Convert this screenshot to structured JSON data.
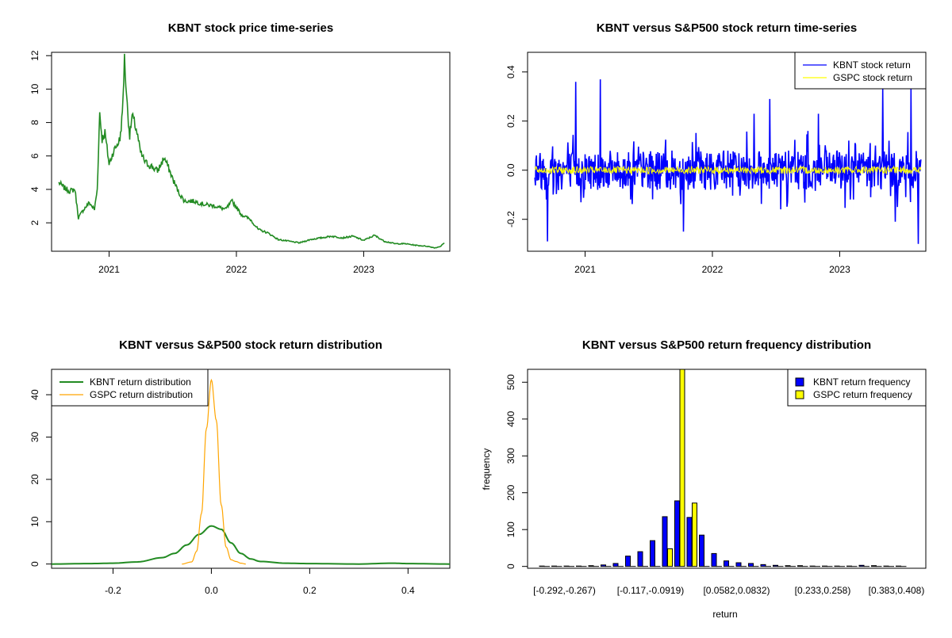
{
  "chart_data": [
    {
      "type": "line",
      "title": "KBNT stock price time-series",
      "xlabel": "",
      "ylabel": "",
      "xlim": [
        "2020-07-20",
        "2023-09-05"
      ],
      "ylim": [
        0.3,
        12.2
      ],
      "x_ticks": [
        "2021",
        "2022",
        "2023"
      ],
      "y_ticks": [
        "2",
        "4",
        "6",
        "8",
        "10",
        "12"
      ],
      "color": "#228B22",
      "series": [
        {
          "name": "",
          "points": [
            [
              "2020-08-10",
              4.4
            ],
            [
              "2020-08-25",
              4.1
            ],
            [
              "2020-09-10",
              3.9
            ],
            [
              "2020-09-25",
              4.0
            ],
            [
              "2020-10-05",
              2.3
            ],
            [
              "2020-10-20",
              2.8
            ],
            [
              "2020-11-05",
              3.2
            ],
            [
              "2020-11-20",
              2.8
            ],
            [
              "2020-11-28",
              4.0
            ],
            [
              "2020-12-05",
              8.6
            ],
            [
              "2020-12-12",
              7.0
            ],
            [
              "2020-12-20",
              7.4
            ],
            [
              "2021-01-01",
              5.5
            ],
            [
              "2021-01-12",
              6.2
            ],
            [
              "2021-01-22",
              6.6
            ],
            [
              "2021-02-01",
              7.0
            ],
            [
              "2021-02-08",
              8.5
            ],
            [
              "2021-02-14",
              11.8
            ],
            [
              "2021-02-22",
              9.0
            ],
            [
              "2021-03-01",
              7.2
            ],
            [
              "2021-03-08",
              8.4
            ],
            [
              "2021-03-20",
              7.6
            ],
            [
              "2021-04-01",
              6.2
            ],
            [
              "2021-04-15",
              5.6
            ],
            [
              "2021-05-01",
              5.4
            ],
            [
              "2021-05-20",
              5.1
            ],
            [
              "2021-06-08",
              5.9
            ],
            [
              "2021-06-20",
              5.3
            ],
            [
              "2021-07-05",
              4.5
            ],
            [
              "2021-07-20",
              3.8
            ],
            [
              "2021-08-05",
              3.3
            ],
            [
              "2021-09-01",
              3.3
            ],
            [
              "2021-10-01",
              3.1
            ],
            [
              "2021-11-01",
              3.0
            ],
            [
              "2021-12-01",
              2.8
            ],
            [
              "2021-12-20",
              3.3
            ],
            [
              "2022-01-15",
              2.5
            ],
            [
              "2022-02-10",
              2.2
            ],
            [
              "2022-03-05",
              1.6
            ],
            [
              "2022-04-01",
              1.4
            ],
            [
              "2022-05-01",
              1.0
            ],
            [
              "2022-06-01",
              0.9
            ],
            [
              "2022-07-01",
              0.8
            ],
            [
              "2022-08-01",
              1.0
            ],
            [
              "2022-09-01",
              1.1
            ],
            [
              "2022-10-01",
              1.2
            ],
            [
              "2022-11-01",
              1.1
            ],
            [
              "2022-12-01",
              1.2
            ],
            [
              "2023-01-01",
              0.95
            ],
            [
              "2023-02-01",
              1.25
            ],
            [
              "2023-03-01",
              0.9
            ],
            [
              "2023-04-01",
              0.75
            ],
            [
              "2023-05-01",
              0.75
            ],
            [
              "2023-06-01",
              0.65
            ],
            [
              "2023-07-01",
              0.6
            ],
            [
              "2023-07-25",
              0.5
            ],
            [
              "2023-08-10",
              0.6
            ],
            [
              "2023-08-20",
              0.8
            ]
          ]
        }
      ]
    },
    {
      "type": "line",
      "title": "KBNT versus S&P500 stock return time-series",
      "xlabel": "",
      "ylabel": "",
      "xlim": [
        "2020-07-20",
        "2023-09-05"
      ],
      "ylim": [
        -0.33,
        0.48
      ],
      "x_ticks": [
        "2021",
        "2022",
        "2023"
      ],
      "y_ticks": [
        "-0.2",
        "0.0",
        "0.2",
        "0.4"
      ],
      "legend": {
        "position": "top-right",
        "items": [
          {
            "label": "KBNT stock return",
            "color": "#0000FF"
          },
          {
            "label": "GSPC stock return",
            "color": "#FFFF00"
          }
        ]
      },
      "series": [
        {
          "name": "KBNT stock return",
          "color": "#0000FF",
          "spikes": [
            [
              "2020-09-15",
              -0.29
            ],
            [
              "2020-09-25",
              -0.15
            ],
            [
              "2020-12-05",
              0.36
            ],
            [
              "2021-02-14",
              0.37
            ],
            [
              "2021-03-15",
              -0.15
            ],
            [
              "2021-06-01",
              -0.24
            ],
            [
              "2021-10-10",
              -0.25
            ],
            [
              "2022-05-01",
              0.23
            ],
            [
              "2022-06-15",
              0.29
            ],
            [
              "2022-11-01",
              0.23
            ],
            [
              "2023-05-05",
              0.33
            ],
            [
              "2023-06-10",
              -0.21
            ],
            [
              "2023-07-25",
              0.33
            ],
            [
              "2023-08-15",
              -0.3
            ],
            [
              "2023-08-20",
              0.1
            ]
          ],
          "noise_amplitude": 0.08
        },
        {
          "name": "GSPC stock return",
          "color": "#FFFF00",
          "noise_amplitude": 0.015
        }
      ]
    },
    {
      "type": "line",
      "title": "KBNT versus S&P500 stock return distribution",
      "xlabel": "",
      "ylabel": "",
      "xlim": [
        -0.325,
        0.485
      ],
      "ylim": [
        -1.0,
        46.0
      ],
      "x_ticks": [
        "-0.2",
        "0.0",
        "0.2",
        "0.4"
      ],
      "y_ticks": [
        "0",
        "10",
        "20",
        "30",
        "40"
      ],
      "legend": {
        "position": "top-left",
        "items": [
          {
            "label": "KBNT return distribution",
            "color": "#228B22"
          },
          {
            "label": "GSPC return distribution",
            "color": "#FFA500"
          }
        ]
      },
      "series": [
        {
          "name": "KBNT return distribution",
          "color": "#228B22",
          "points": [
            [
              -0.325,
              0
            ],
            [
              -0.25,
              0.1
            ],
            [
              -0.2,
              0.2
            ],
            [
              -0.15,
              0.5
            ],
            [
              -0.1,
              1.5
            ],
            [
              -0.075,
              2.5
            ],
            [
              -0.05,
              4.5
            ],
            [
              -0.025,
              7.0
            ],
            [
              0.0,
              9.0
            ],
            [
              0.02,
              8.2
            ],
            [
              0.04,
              5.0
            ],
            [
              0.06,
              2.5
            ],
            [
              0.08,
              1.2
            ],
            [
              0.1,
              0.6
            ],
            [
              0.15,
              0.2
            ],
            [
              0.2,
              0.1
            ],
            [
              0.3,
              0
            ],
            [
              0.37,
              0.2
            ],
            [
              0.4,
              0.1
            ],
            [
              0.485,
              0
            ]
          ]
        },
        {
          "name": "GSPC return distribution",
          "color": "#FFA500",
          "points": [
            [
              -0.06,
              0
            ],
            [
              -0.04,
              0.5
            ],
            [
              -0.03,
              3
            ],
            [
              -0.02,
              12
            ],
            [
              -0.01,
              32
            ],
            [
              0.0,
              43.5
            ],
            [
              0.01,
              34
            ],
            [
              0.02,
              14
            ],
            [
              0.03,
              4
            ],
            [
              0.04,
              1
            ],
            [
              0.05,
              0.6
            ],
            [
              0.06,
              0.2
            ],
            [
              0.07,
              0
            ]
          ]
        }
      ]
    },
    {
      "type": "bar",
      "title": "KBNT versus S&P500 return frequency distribution",
      "xlabel": "return",
      "ylabel": "frequency",
      "ylim": [
        -5,
        535
      ],
      "y_ticks": [
        "0",
        "100",
        "200",
        "300",
        "400",
        "500"
      ],
      "category_ticks": [
        "[-0.292,-0.267)",
        "[-0.117,-0.0919)",
        "[0.0582,0.0832)",
        "[0.233,0.258)",
        "[0.383,0.408)"
      ],
      "legend": {
        "position": "top-right",
        "items": [
          {
            "label": "KBNT return frequency",
            "color": "#0000FF"
          },
          {
            "label": "GSPC return frequency",
            "color": "#FFFF00"
          }
        ]
      },
      "series": [
        {
          "name": "KBNT return frequency",
          "color": "#0000FF",
          "values": [
            1,
            1,
            1,
            1,
            2,
            4,
            8,
            28,
            40,
            70,
            135,
            178,
            133,
            85,
            35,
            15,
            10,
            8,
            5,
            3,
            2,
            2,
            1,
            1,
            1,
            1,
            3,
            2,
            1,
            1
          ]
        },
        {
          "name": "GSPC return frequency",
          "color": "#FFFF00",
          "values": [
            0,
            0,
            0,
            0,
            0,
            0,
            0,
            0,
            0,
            0,
            48,
            535,
            172,
            0,
            0,
            0,
            0,
            0,
            0,
            0,
            0,
            0,
            0,
            0,
            0,
            0,
            0,
            0,
            0,
            0
          ]
        }
      ]
    }
  ]
}
